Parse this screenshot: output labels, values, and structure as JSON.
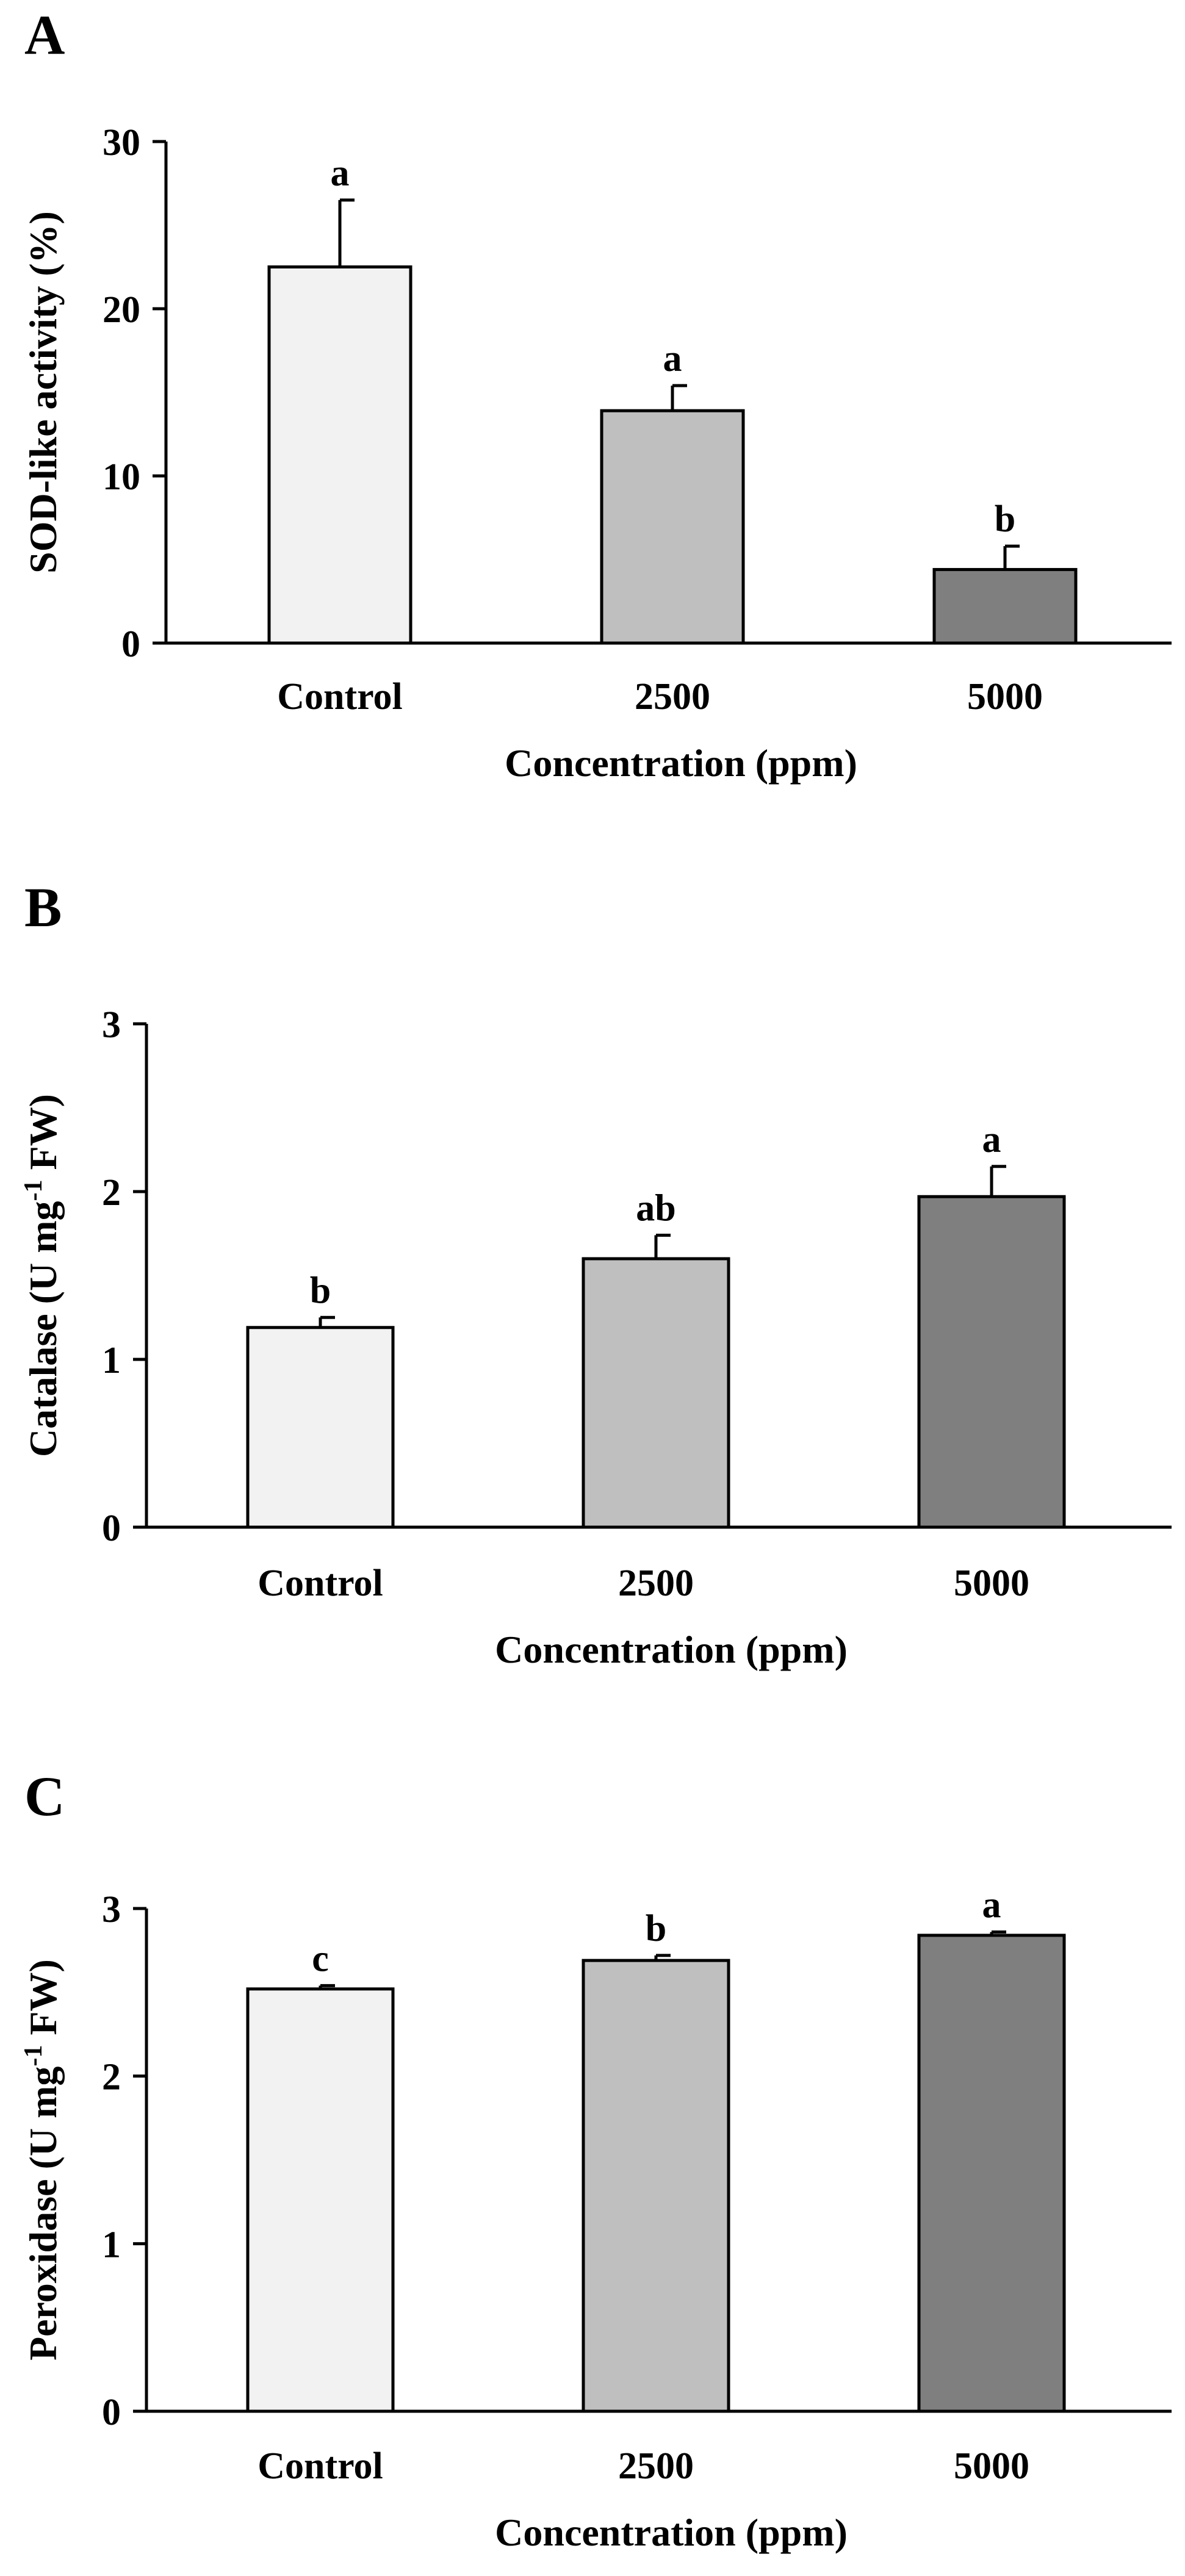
{
  "chart_data": [
    {
      "type": "bar",
      "panel": "A",
      "categories": [
        "Control",
        "2500",
        "5000"
      ],
      "values": [
        22.5,
        13.9,
        4.4
      ],
      "errors": [
        4.0,
        1.5,
        1.4
      ],
      "significance": [
        "a",
        "a",
        "b"
      ],
      "colors": [
        "#f2f2f2",
        "#bfbfbf",
        "#7f7f7f"
      ],
      "ylabel": "SOD-like activity (%)",
      "xlabel": "Concentration (ppm)",
      "ylim": [
        0,
        30
      ],
      "yticks": [
        0,
        10,
        20,
        30
      ],
      "ylabel_sup": ""
    },
    {
      "type": "bar",
      "panel": "B",
      "categories": [
        "Control",
        "2500",
        "5000"
      ],
      "values": [
        1.19,
        1.6,
        1.97
      ],
      "errors": [
        0.06,
        0.14,
        0.18
      ],
      "significance": [
        "b",
        "ab",
        "a"
      ],
      "colors": [
        "#f2f2f2",
        "#bfbfbf",
        "#7f7f7f"
      ],
      "ylabel": "Catalase (U mg",
      "ylabel_sup": "-1",
      "ylabel_tail": " FW)",
      "xlabel": "Concentration (ppm)",
      "ylim": [
        0,
        3
      ],
      "yticks": [
        0,
        1,
        2,
        3
      ]
    },
    {
      "type": "bar",
      "panel": "C",
      "categories": [
        "Control",
        "2500",
        "5000"
      ],
      "values": [
        2.52,
        2.69,
        2.84
      ],
      "errors": [
        0.02,
        0.03,
        0.02
      ],
      "significance": [
        "c",
        "b",
        "a"
      ],
      "colors": [
        "#f2f2f2",
        "#bfbfbf",
        "#7f7f7f"
      ],
      "ylabel": "Peroxidase (U mg",
      "ylabel_sup": "-1",
      "ylabel_tail": " FW)",
      "xlabel": "Concentration (ppm)",
      "ylim": [
        0,
        3
      ],
      "yticks": [
        0,
        1,
        2,
        3
      ]
    }
  ]
}
